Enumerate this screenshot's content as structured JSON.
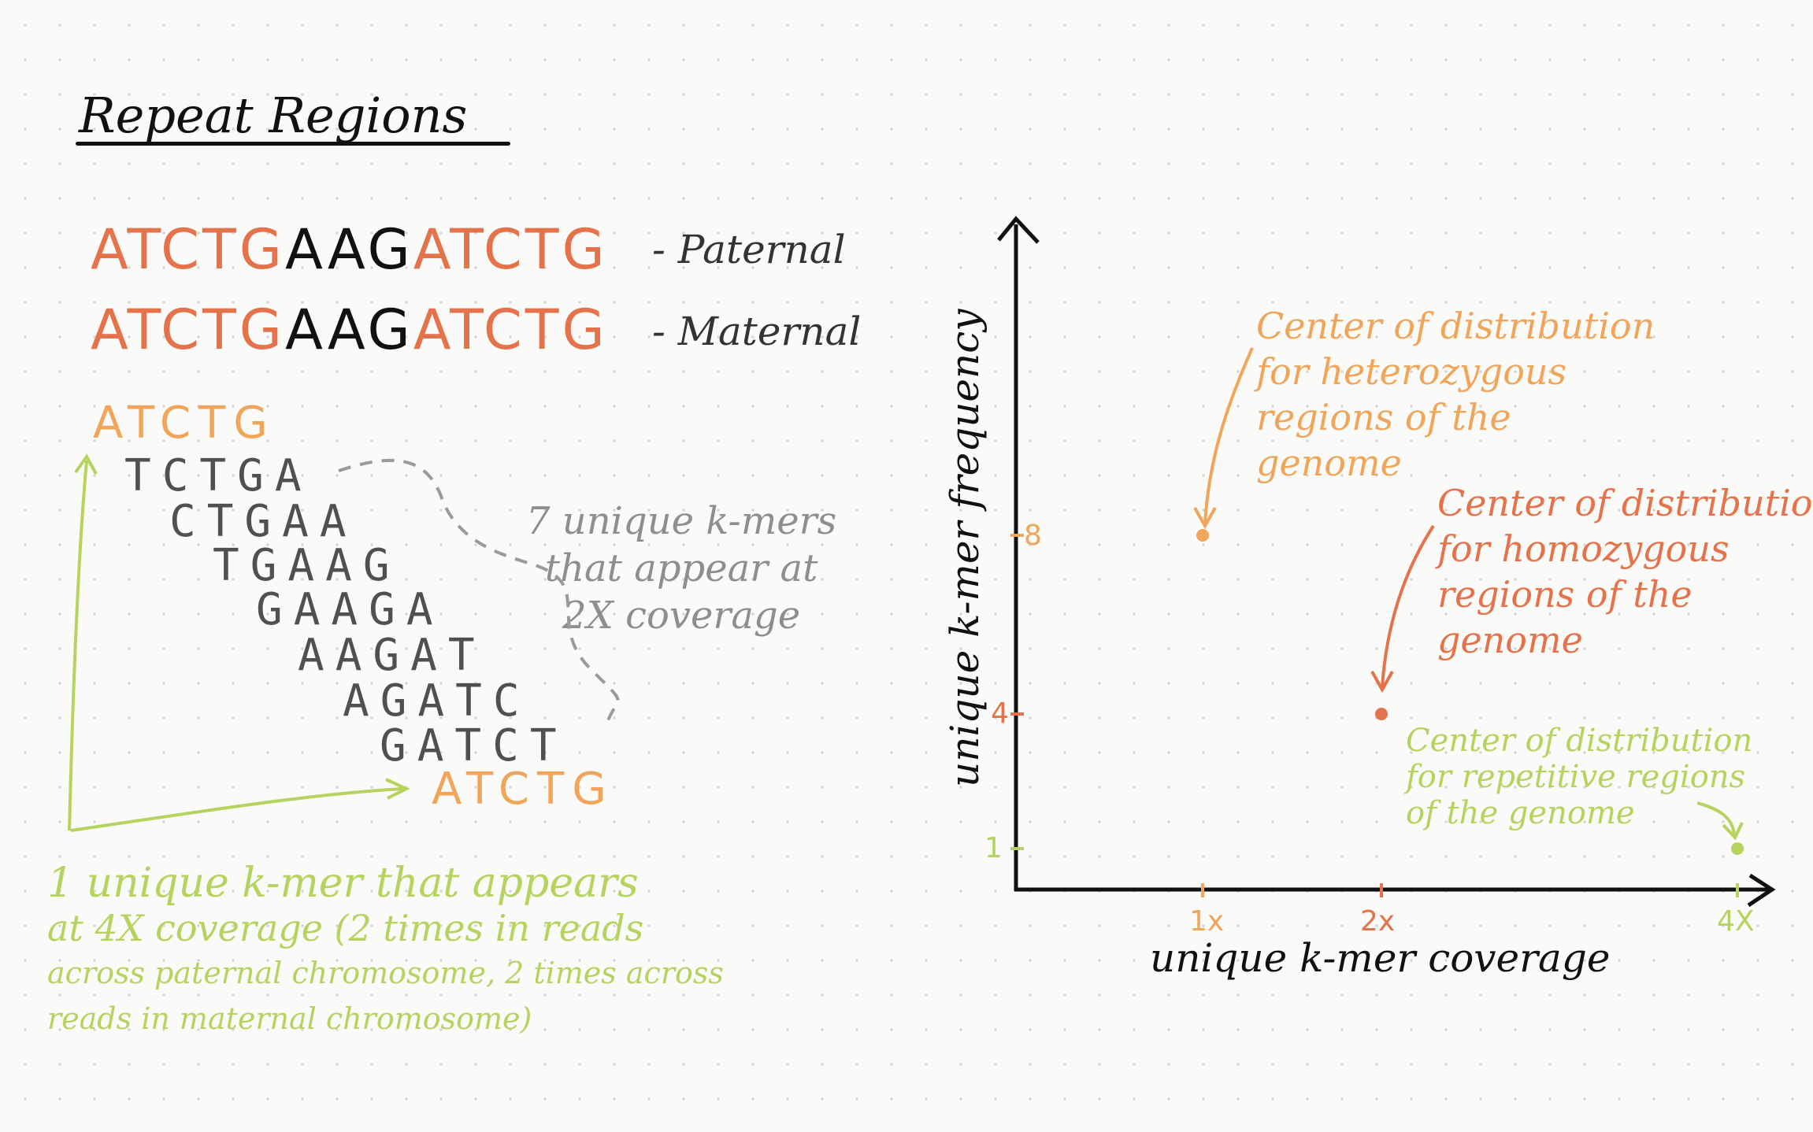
{
  "title": "Repeat Regions",
  "sequences": [
    {
      "part1": "ATCTG",
      "part2": "AAG",
      "part3": "ATCTG",
      "label": "- Paternal"
    },
    {
      "part1": "ATCTG",
      "part2": "AAG",
      "part3": "ATCTG",
      "label": "- Maternal"
    }
  ],
  "kmers": {
    "first": "ATCTG",
    "middle": [
      "TCTGA",
      "CTGAA",
      "TGAAG",
      "GAAGA",
      "AAGAT",
      "AGATC",
      "GATCT"
    ],
    "last": "ATCTG"
  },
  "notes": {
    "grey": "7 unique k-mers\nthat appear at\n2X coverage",
    "green_line1": "1 unique k-mer that appears",
    "green_line2": "at 4X coverage (2 times in reads",
    "green_line3": "across paternal chromosome, 2 times across",
    "green_line4": "reads in maternal chromosome)"
  },
  "plot": {
    "x_label": "unique k-mer coverage",
    "y_label": "unique k-mer frequency",
    "x_ticks": [
      "1x",
      "2x",
      "4X"
    ],
    "y_ticks": [
      "8",
      "4",
      "1"
    ],
    "annotations": {
      "heterozygous": "Center of distribution\nfor heterozygous\nregions of the\ngenome",
      "homozygous": "Center of distribution\nfor homozygous\nregions of the\ngenome",
      "repetitive": "Center of distribution\nfor repetitive regions\nof the genome"
    }
  },
  "colors": {
    "orange": "#e4734c",
    "light_orange": "#f0a55a",
    "green": "#b6d25f",
    "grey": "#8e8e8e",
    "ink": "#111111"
  },
  "chart_data": {
    "type": "scatter",
    "xlabel": "unique k-mer coverage",
    "ylabel": "unique k-mer frequency",
    "x_ticks": [
      "1x",
      "2x",
      "4X"
    ],
    "y_ticks": [
      8,
      4,
      1
    ],
    "series": [
      {
        "x": [
          1,
          2,
          4
        ],
        "y": [
          8,
          4,
          1
        ]
      }
    ]
  }
}
